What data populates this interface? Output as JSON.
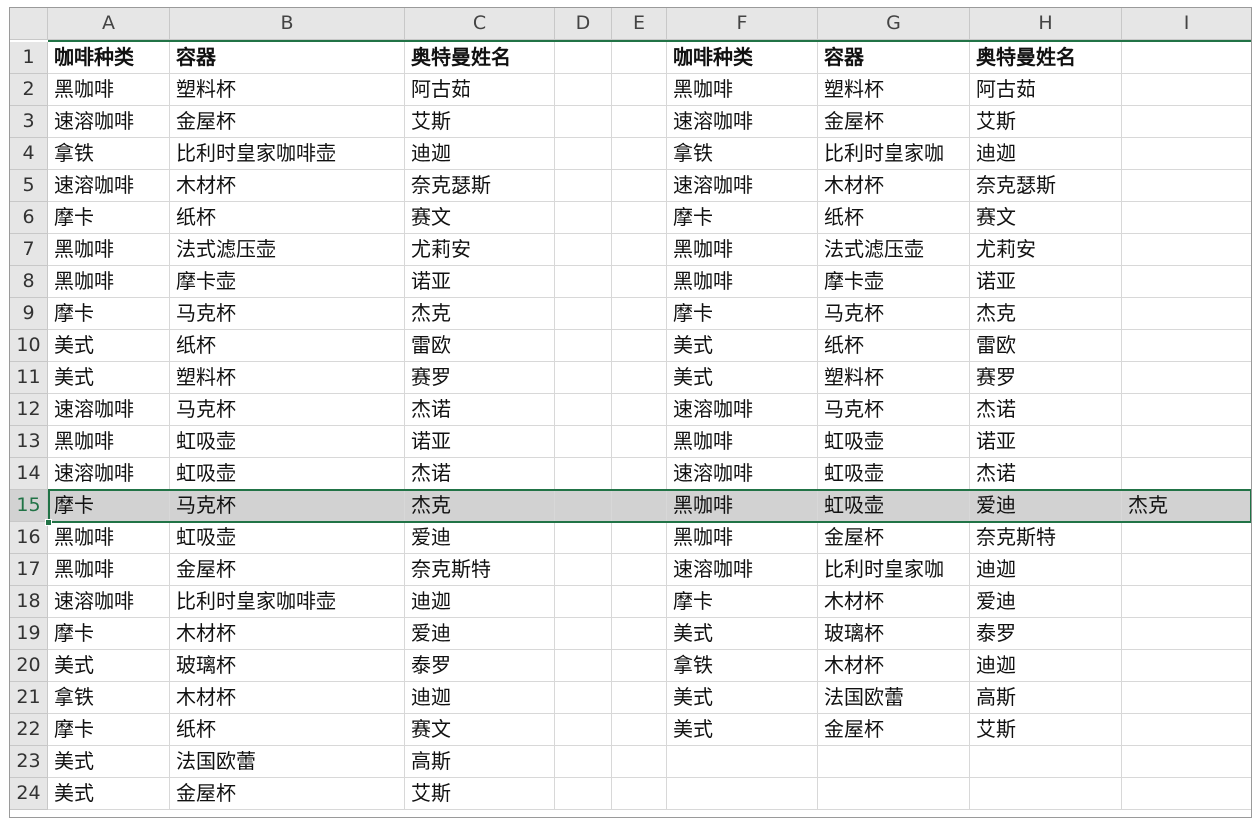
{
  "columns": [
    "A",
    "B",
    "C",
    "D",
    "E",
    "F",
    "G",
    "H",
    "I"
  ],
  "rows": [
    {
      "num": 1,
      "left": [
        "咖啡种类",
        "容器",
        "奥特曼姓名"
      ],
      "right": [
        "咖啡种类",
        "容器",
        "奥特曼姓名"
      ]
    },
    {
      "num": 2,
      "left": [
        "黑咖啡",
        "塑料杯",
        "阿古茹"
      ],
      "right": [
        "黑咖啡",
        "塑料杯",
        "阿古茹"
      ]
    },
    {
      "num": 3,
      "left": [
        "速溶咖啡",
        "金屋杯",
        "艾斯"
      ],
      "right": [
        "速溶咖啡",
        "金屋杯",
        "艾斯"
      ]
    },
    {
      "num": 4,
      "left": [
        "拿铁",
        "比利时皇家咖啡壶",
        "迪迦"
      ],
      "right": [
        "拿铁",
        "比利时皇家咖",
        "迪迦"
      ]
    },
    {
      "num": 5,
      "left": [
        "速溶咖啡",
        "木材杯",
        "奈克瑟斯"
      ],
      "right": [
        "速溶咖啡",
        "木材杯",
        "奈克瑟斯"
      ]
    },
    {
      "num": 6,
      "left": [
        "摩卡",
        "纸杯",
        "赛文"
      ],
      "right": [
        "摩卡",
        "纸杯",
        "赛文"
      ]
    },
    {
      "num": 7,
      "left": [
        "黑咖啡",
        "法式滤压壶",
        "尤莉安"
      ],
      "right": [
        "黑咖啡",
        "法式滤压壶",
        "尤莉安"
      ]
    },
    {
      "num": 8,
      "left": [
        "黑咖啡",
        "摩卡壶",
        "诺亚"
      ],
      "right": [
        "黑咖啡",
        "摩卡壶",
        "诺亚"
      ]
    },
    {
      "num": 9,
      "left": [
        "摩卡",
        "马克杯",
        "杰克"
      ],
      "right": [
        "摩卡",
        "马克杯",
        "杰克"
      ]
    },
    {
      "num": 10,
      "left": [
        "美式",
        "纸杯",
        "雷欧"
      ],
      "right": [
        "美式",
        "纸杯",
        "雷欧"
      ]
    },
    {
      "num": 11,
      "left": [
        "美式",
        "塑料杯",
        "赛罗"
      ],
      "right": [
        "美式",
        "塑料杯",
        "赛罗"
      ]
    },
    {
      "num": 12,
      "left": [
        "速溶咖啡",
        "马克杯",
        "杰诺"
      ],
      "right": [
        "速溶咖啡",
        "马克杯",
        "杰诺"
      ]
    },
    {
      "num": 13,
      "left": [
        "黑咖啡",
        "虹吸壶",
        "诺亚"
      ],
      "right": [
        "黑咖啡",
        "虹吸壶",
        "诺亚"
      ]
    },
    {
      "num": 14,
      "left": [
        "速溶咖啡",
        "虹吸壶",
        "杰诺"
      ],
      "right": [
        "速溶咖啡",
        "虹吸壶",
        "杰诺"
      ]
    },
    {
      "num": 15,
      "left": [
        "摩卡",
        "马克杯",
        "杰克"
      ],
      "right": [
        "黑咖啡",
        "虹吸壶",
        "爱迪",
        "杰克"
      ]
    },
    {
      "num": 16,
      "left": [
        "黑咖啡",
        "虹吸壶",
        "爱迪"
      ],
      "right": [
        "黑咖啡",
        "金屋杯",
        "奈克斯特"
      ]
    },
    {
      "num": 17,
      "left": [
        "黑咖啡",
        "金屋杯",
        "奈克斯特"
      ],
      "right": [
        "速溶咖啡",
        "比利时皇家咖",
        "迪迦"
      ]
    },
    {
      "num": 18,
      "left": [
        "速溶咖啡",
        "比利时皇家咖啡壶",
        "迪迦"
      ],
      "right": [
        "摩卡",
        "木材杯",
        "爱迪"
      ]
    },
    {
      "num": 19,
      "left": [
        "摩卡",
        "木材杯",
        "爱迪"
      ],
      "right": [
        "美式",
        "玻璃杯",
        "泰罗"
      ]
    },
    {
      "num": 20,
      "left": [
        "美式",
        "玻璃杯",
        "泰罗"
      ],
      "right": [
        "拿铁",
        "木材杯",
        "迪迦"
      ]
    },
    {
      "num": 21,
      "left": [
        "拿铁",
        "木材杯",
        "迪迦"
      ],
      "right": [
        "美式",
        "法国欧蕾",
        "高斯"
      ]
    },
    {
      "num": 22,
      "left": [
        "摩卡",
        "纸杯",
        "赛文"
      ],
      "right": [
        "美式",
        "金屋杯",
        "艾斯"
      ]
    },
    {
      "num": 23,
      "left": [
        "美式",
        "法国欧蕾",
        "高斯"
      ]
    },
    {
      "num": 24,
      "left": [
        "美式",
        "金屋杯",
        "艾斯"
      ]
    }
  ]
}
